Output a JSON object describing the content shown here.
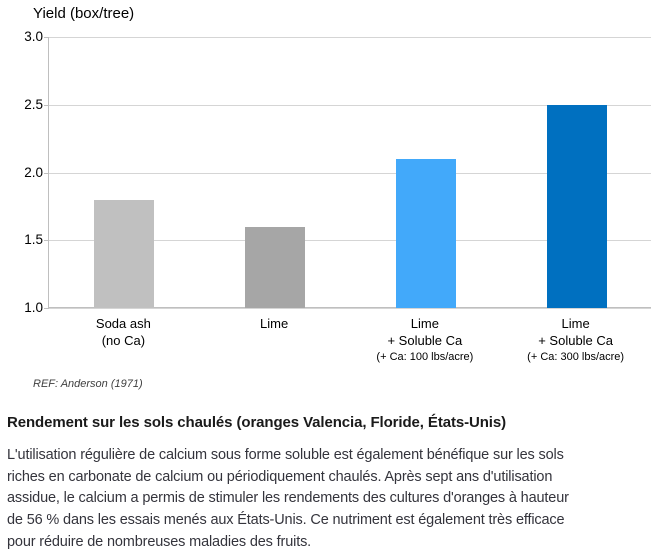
{
  "ref_note": "REF: Anderson (1971)",
  "caption": {
    "heading": "Rendement sur les sols chaulés (oranges Valencia, Floride, États-Unis)",
    "body_lines": [
      "L'utilisation régulière de calcium sous forme soluble est également bénéfique sur les sols",
      "riches en carbonate de calcium ou périodiquement chaulés. Après sept ans d'utilisation",
      "assidue, le calcium a permis de stimuler les rendements des cultures d'oranges à hauteur",
      "de 56 % dans les essais menés aux États-Unis. Ce nutriment est également très efficace",
      "pour réduire de nombreuses maladies des fruits."
    ]
  },
  "colors": {
    "gridline": "#d5d5d5",
    "axis": "#bfbfbf",
    "chart_text": "#000000",
    "caption_text": "#34343c"
  },
  "chart_data": {
    "type": "bar",
    "title": "Yield (box/tree)",
    "xlabel": "",
    "ylabel": "Yield (box/tree)",
    "categories": [
      {
        "id": "soda-ash",
        "lines": [
          "Soda ash",
          "(no Ca)"
        ],
        "subline": ""
      },
      {
        "id": "lime",
        "lines": [
          "Lime"
        ],
        "subline": ""
      },
      {
        "id": "lime-soluble-ca-100",
        "lines": [
          "Lime",
          "+ Soluble Ca"
        ],
        "subline": "(+ Ca: 100 lbs/acre)"
      },
      {
        "id": "lime-soluble-ca-300",
        "lines": [
          "Lime",
          "+ Soluble Ca"
        ],
        "subline": "(+ Ca: 300 lbs/acre)"
      }
    ],
    "values": [
      1.8,
      1.6,
      2.1,
      2.5
    ],
    "bar_colors": [
      "#c0c0c0",
      "#a6a6a6",
      "#42a9fa",
      "#0070c0"
    ],
    "ylim": [
      1.0,
      3.0
    ],
    "yticks": [
      {
        "value": 3.0,
        "label": "3.0"
      },
      {
        "value": 2.5,
        "label": "2.5"
      },
      {
        "value": 2.0,
        "label": "2.0"
      },
      {
        "value": 1.5,
        "label": "1.5"
      },
      {
        "value": 1.0,
        "label": "1.0"
      }
    ],
    "grid": true,
    "legend": "none"
  }
}
